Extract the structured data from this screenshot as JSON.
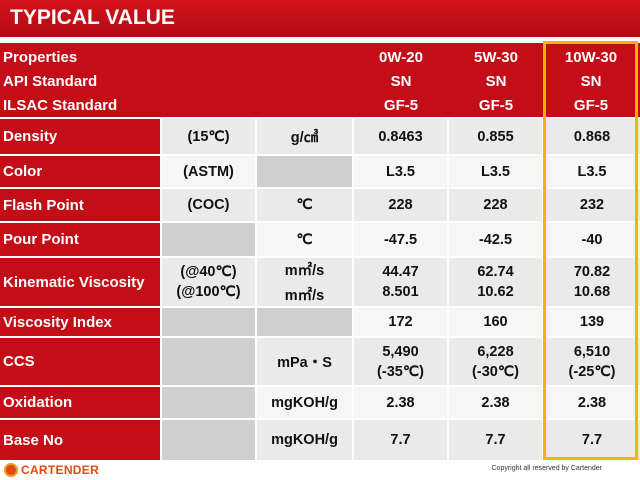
{
  "title": "TYPICAL VALUE",
  "header": {
    "labels": [
      "Properties",
      "API Standard",
      "ILSAC Standard"
    ],
    "grades": [
      {
        "name": "0W-20",
        "api": "SN",
        "ilsac": "GF-5"
      },
      {
        "name": "5W-30",
        "api": "SN",
        "ilsac": "GF-5"
      },
      {
        "name": "10W-30",
        "api": "SN",
        "ilsac": "GF-5"
      }
    ]
  },
  "rows": [
    {
      "label": "Density",
      "cond": "(15℃)",
      "unit": "g/㎤",
      "v": [
        "0.8463",
        "0.855",
        "0.868"
      ]
    },
    {
      "label": "Color",
      "cond": "(ASTM)",
      "unit": "",
      "v": [
        "L3.5",
        "L3.5",
        "L3.5"
      ]
    },
    {
      "label": "Flash Point",
      "cond": "(COC)",
      "unit": "℃",
      "v": [
        "228",
        "228",
        "232"
      ]
    },
    {
      "label": "Pour Point",
      "cond": "",
      "unit": "℃",
      "v": [
        "-47.5",
        "-42.5",
        "-40"
      ]
    },
    {
      "label": "Kinematic Viscosity",
      "cond": "(@40℃)",
      "cond2": "(@100℃)",
      "unit": "m㎡/s",
      "unit2": "m㎡/s",
      "v": [
        "44.47",
        "62.74",
        "70.82"
      ],
      "v2": [
        "8.501",
        "10.62",
        "10.68"
      ]
    },
    {
      "label": "Viscosity Index",
      "cond": "",
      "unit": "",
      "v": [
        "172",
        "160",
        "139"
      ]
    },
    {
      "label": "CCS",
      "cond": "",
      "unit": "mPa・S",
      "v": [
        "5,490",
        "6,228",
        "6,510"
      ],
      "v2": [
        "(-35℃)",
        "(-30℃)",
        "(-25℃)"
      ]
    },
    {
      "label": "Oxidation",
      "cond": "",
      "unit": "mgKOH/g",
      "v": [
        "2.38",
        "2.38",
        "2.38"
      ]
    },
    {
      "label": "Base No",
      "cond": "",
      "unit": "mgKOH/g",
      "v": [
        "7.7",
        "7.7",
        "7.7"
      ]
    }
  ],
  "footer": {
    "brand": "CARTENDER",
    "copyright": "Copyright  all reserved by Cartender"
  },
  "colors": {
    "brand_red": "#c40e17",
    "highlight": "#f5b400"
  }
}
